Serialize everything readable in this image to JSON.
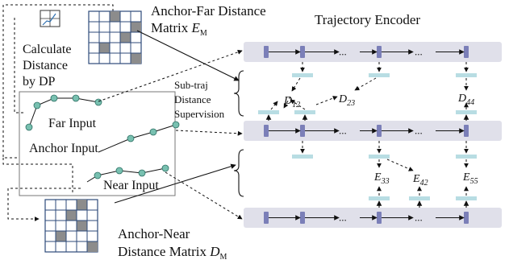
{
  "top_label": {
    "line1": "Anchor-Far Distance",
    "line2": "Matrix ",
    "math": "E",
    "sub": "M"
  },
  "bottom_label": {
    "line1": "Anchor-Near",
    "line2": "Distance Matrix ",
    "math": "D",
    "sub": "M"
  },
  "calc": {
    "line1": "Calculate",
    "line2": "Distance",
    "line3": "by DP"
  },
  "encoder_title": "Trajectory Encoder",
  "supervision": {
    "line1": "Sub-traj",
    "line2": "Distance",
    "line3": "Supervision"
  },
  "inputs": {
    "far": "Far Input",
    "anchor": "Anchor Input",
    "near": "Near Input"
  },
  "ellipsis": "...",
  "d_labels": [
    {
      "math": "D",
      "sub": "12"
    },
    {
      "math": "D",
      "sub": "23"
    },
    {
      "math": "D",
      "sub": "44"
    }
  ],
  "e_labels": [
    {
      "math": "E",
      "sub": "33"
    },
    {
      "math": "E",
      "sub": "42"
    },
    {
      "math": "E",
      "sub": "55"
    }
  ],
  "colors": {
    "band": "#e0e0ea",
    "cell": "#7b7fb8",
    "projection": "#b8dde3",
    "point": "#78c0b0",
    "matrix_grid": "#2d4a7a",
    "matrix_shaded": "#8c8c8c"
  },
  "icons": [
    "matrix-grid-icon",
    "dp-grid-icon"
  ]
}
